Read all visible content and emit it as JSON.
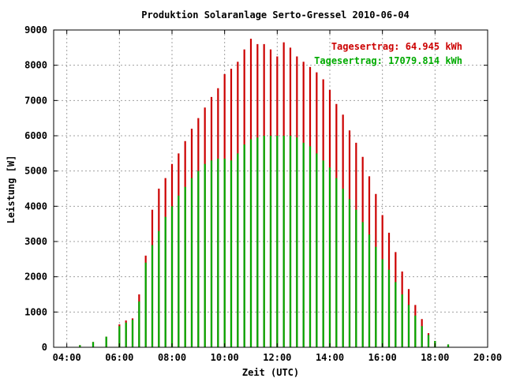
{
  "chart_data": {
    "type": "bar",
    "title": "Produktion Solaranlage Serto-Gressel 2010-06-04",
    "xlabel": "Zeit (UTC)",
    "ylabel": "Leistung [W]",
    "xlim": [
      3.5,
      20.0
    ],
    "ylim": [
      0,
      9000
    ],
    "grid": true,
    "x_ticks": [
      "04:00",
      "06:00",
      "08:00",
      "10:00",
      "12:00",
      "14:00",
      "16:00",
      "18:00",
      "20:00"
    ],
    "y_ticks": [
      "0",
      "1000",
      "2000",
      "3000",
      "4000",
      "5000",
      "6000",
      "7000",
      "8000",
      "9000"
    ],
    "legend_position": "top-right",
    "series": [
      {
        "name": "Tagesertrag: 64.945 kWh",
        "color": "#cc0000",
        "points": [
          [
            4.0,
            10
          ],
          [
            4.5,
            60
          ],
          [
            5.0,
            150
          ],
          [
            5.5,
            300
          ],
          [
            6.0,
            650
          ],
          [
            6.25,
            760
          ],
          [
            6.5,
            820
          ],
          [
            6.75,
            1500
          ],
          [
            7.0,
            2600
          ],
          [
            7.25,
            3900
          ],
          [
            7.5,
            4500
          ],
          [
            7.75,
            4800
          ],
          [
            8.0,
            5200
          ],
          [
            8.25,
            5500
          ],
          [
            8.5,
            5850
          ],
          [
            8.75,
            6200
          ],
          [
            9.0,
            6500
          ],
          [
            9.25,
            6800
          ],
          [
            9.5,
            7100
          ],
          [
            9.75,
            7350
          ],
          [
            10.0,
            7750
          ],
          [
            10.25,
            7900
          ],
          [
            10.5,
            8100
          ],
          [
            10.75,
            8450
          ],
          [
            11.0,
            8750
          ],
          [
            11.25,
            8600
          ],
          [
            11.5,
            8600
          ],
          [
            11.75,
            8450
          ],
          [
            12.0,
            8250
          ],
          [
            12.25,
            8650
          ],
          [
            12.5,
            8500
          ],
          [
            12.75,
            8250
          ],
          [
            13.0,
            8100
          ],
          [
            13.25,
            7950
          ],
          [
            13.5,
            7800
          ],
          [
            13.75,
            7600
          ],
          [
            14.0,
            7300
          ],
          [
            14.25,
            6900
          ],
          [
            14.5,
            6600
          ],
          [
            14.75,
            6150
          ],
          [
            15.0,
            5800
          ],
          [
            15.25,
            5400
          ],
          [
            15.5,
            4850
          ],
          [
            15.75,
            4350
          ],
          [
            16.0,
            3750
          ],
          [
            16.25,
            3250
          ],
          [
            16.5,
            2700
          ],
          [
            16.75,
            2150
          ],
          [
            17.0,
            1650
          ],
          [
            17.25,
            1200
          ],
          [
            17.5,
            800
          ],
          [
            17.75,
            400
          ],
          [
            18.0,
            180
          ],
          [
            18.5,
            80
          ],
          [
            19.0,
            10
          ]
        ]
      },
      {
        "name": "Tagesertrag: 17079.814 kWh",
        "color": "#00aa00",
        "points": [
          [
            4.0,
            10
          ],
          [
            4.5,
            60
          ],
          [
            5.0,
            150
          ],
          [
            5.5,
            300
          ],
          [
            6.0,
            600
          ],
          [
            6.25,
            700
          ],
          [
            6.5,
            780
          ],
          [
            6.75,
            1300
          ],
          [
            7.0,
            2400
          ],
          [
            7.25,
            2900
          ],
          [
            7.5,
            3300
          ],
          [
            7.75,
            3700
          ],
          [
            8.0,
            4000
          ],
          [
            8.25,
            4300
          ],
          [
            8.5,
            4550
          ],
          [
            8.75,
            4800
          ],
          [
            9.0,
            5000
          ],
          [
            9.25,
            5200
          ],
          [
            9.5,
            5300
          ],
          [
            9.75,
            5350
          ],
          [
            10.0,
            5350
          ],
          [
            10.25,
            5300
          ],
          [
            10.5,
            5500
          ],
          [
            10.75,
            5750
          ],
          [
            11.0,
            5900
          ],
          [
            11.25,
            5950
          ],
          [
            11.5,
            6000
          ],
          [
            11.75,
            6000
          ],
          [
            12.0,
            6000
          ],
          [
            12.25,
            6000
          ],
          [
            12.5,
            6000
          ],
          [
            12.75,
            5950
          ],
          [
            13.0,
            5800
          ],
          [
            13.25,
            5700
          ],
          [
            13.5,
            5500
          ],
          [
            13.75,
            5300
          ],
          [
            14.0,
            5100
          ],
          [
            14.25,
            4800
          ],
          [
            14.5,
            4500
          ],
          [
            14.75,
            4200
          ],
          [
            15.0,
            3900
          ],
          [
            15.25,
            3550
          ],
          [
            15.5,
            3200
          ],
          [
            15.75,
            2850
          ],
          [
            16.0,
            2500
          ],
          [
            16.25,
            2200
          ],
          [
            16.5,
            1850
          ],
          [
            16.75,
            1500
          ],
          [
            17.0,
            1200
          ],
          [
            17.25,
            900
          ],
          [
            17.5,
            600
          ],
          [
            17.75,
            350
          ],
          [
            18.0,
            180
          ],
          [
            18.5,
            80
          ],
          [
            19.0,
            10
          ]
        ]
      }
    ]
  }
}
